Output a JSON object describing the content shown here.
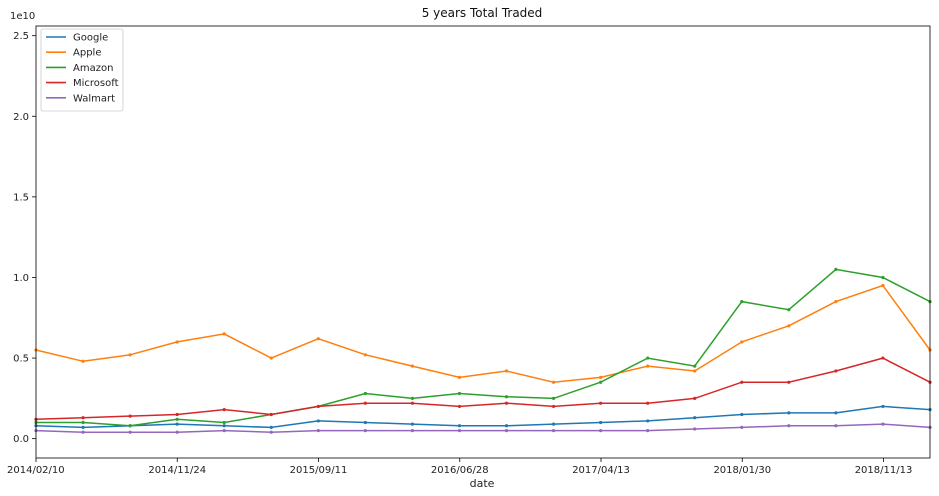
{
  "chart_data": {
    "type": "line",
    "title": "5 years Total Traded",
    "xlabel": "date",
    "ylabel": "",
    "y_offset_label": "1e10",
    "ylim": [
      -0.12,
      2.56
    ],
    "y_ticks": [
      0.0,
      0.5,
      1.0,
      1.5,
      2.0,
      2.5
    ],
    "y_tick_labels": [
      "0.0",
      "0.5",
      "1.0",
      "1.5",
      "2.0",
      "2.5"
    ],
    "x_tick_labels": [
      "2014/02/10",
      "2014/11/24",
      "2015/09/11",
      "2016/06/28",
      "2017/04/13",
      "2018/01/30",
      "2018/11/13"
    ],
    "legend_position": "upper-left",
    "grid": false,
    "x": [
      "2014/02/10",
      "2014/06/01",
      "2014/09/15",
      "2014/11/24",
      "2015/03/01",
      "2015/06/01",
      "2015/09/11",
      "2015/12/15",
      "2016/03/15",
      "2016/06/28",
      "2016/10/01",
      "2017/01/01",
      "2017/04/13",
      "2017/07/15",
      "2017/10/15",
      "2018/01/30",
      "2018/05/01",
      "2018/08/01",
      "2018/11/13",
      "2019/02/07"
    ],
    "series": [
      {
        "name": "Google",
        "color": "#1f77b4",
        "values": [
          0.08,
          0.07,
          0.08,
          0.09,
          0.08,
          0.07,
          0.11,
          0.1,
          0.09,
          0.08,
          0.08,
          0.09,
          0.1,
          0.11,
          0.13,
          0.15,
          0.16,
          0.16,
          0.2,
          0.18
        ]
      },
      {
        "name": "Apple",
        "color": "#ff7f0e",
        "values": [
          0.55,
          0.48,
          0.52,
          0.6,
          0.65,
          0.5,
          0.62,
          0.52,
          0.45,
          0.38,
          0.42,
          0.35,
          0.38,
          0.45,
          0.42,
          0.6,
          0.7,
          0.85,
          0.95,
          0.55
        ]
      },
      {
        "name": "Amazon",
        "color": "#2ca02c",
        "values": [
          0.1,
          0.1,
          0.08,
          0.12,
          0.1,
          0.15,
          0.2,
          0.28,
          0.25,
          0.28,
          0.26,
          0.25,
          0.35,
          0.5,
          0.45,
          0.85,
          0.8,
          1.05,
          1.0,
          0.85
        ]
      },
      {
        "name": "Microsoft",
        "color": "#d62728",
        "values": [
          0.12,
          0.13,
          0.14,
          0.15,
          0.18,
          0.15,
          0.2,
          0.22,
          0.22,
          0.2,
          0.22,
          0.2,
          0.22,
          0.22,
          0.25,
          0.35,
          0.35,
          0.42,
          0.5,
          0.35
        ]
      },
      {
        "name": "Walmart",
        "color": "#9467bd",
        "values": [
          0.05,
          0.04,
          0.04,
          0.04,
          0.05,
          0.04,
          0.05,
          0.05,
          0.05,
          0.05,
          0.05,
          0.05,
          0.05,
          0.05,
          0.06,
          0.07,
          0.08,
          0.08,
          0.09,
          0.07
        ]
      }
    ]
  }
}
